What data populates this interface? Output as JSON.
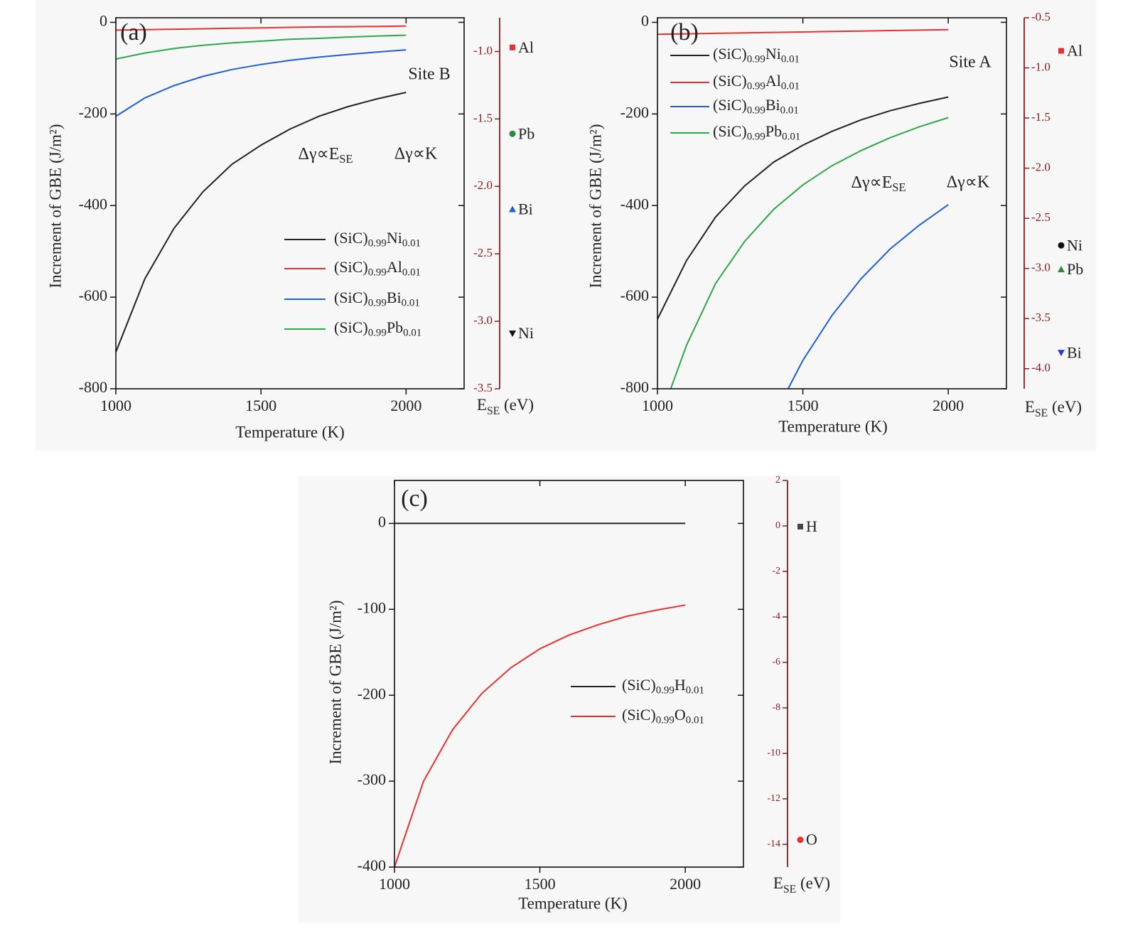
{
  "chart_data": [
    {
      "type": "line",
      "panel_label": "(a)",
      "x_label": "Temperature (K)",
      "y_label": "Increment of GBE (J/m²)",
      "y2_label": "ESE (eV)",
      "x": [
        1000,
        1100,
        1200,
        1300,
        1400,
        1500,
        1600,
        1700,
        1800,
        1900,
        2000
      ],
      "xlim": [
        1000,
        2200
      ],
      "xticks": [
        1000,
        1500,
        2000
      ],
      "ylim": [
        -800,
        10
      ],
      "yticks": [
        -800,
        -600,
        -400,
        -200,
        0
      ],
      "y2lim": [
        -3.5,
        -0.75
      ],
      "y2ticks": [
        -3.5,
        {
          "value": -3,
          "label": "-3.0"
        },
        -2.5,
        {
          "value": -2,
          "label": "-2.0"
        },
        -1.5,
        {
          "value": -1,
          "label": "-1.0"
        }
      ],
      "y2_color": "#8b1a1a",
      "series": [
        {
          "name": "(SiC)0.99Ni0.01",
          "color": "#222222",
          "values": [
            -720,
            -560,
            -450,
            -370,
            -310,
            -268,
            -233,
            -205,
            -184,
            -167,
            -153
          ]
        },
        {
          "name": "(SiC)0.99Al0.01",
          "color": "#e8312f",
          "values": [
            -17,
            -16,
            -15,
            -14,
            -13,
            -12,
            -11,
            -10,
            -9.5,
            -9,
            -8
          ]
        },
        {
          "name": "(SiC)0.99Bi0.01",
          "color": "#1f5fd6",
          "values": [
            -205,
            -165,
            -138,
            -118,
            -103,
            -92,
            -83,
            -76,
            -70,
            -65,
            -60
          ]
        },
        {
          "name": "(SiC)0.99Pb0.01",
          "color": "#2ca84a",
          "values": [
            -80,
            -67,
            -57,
            -50,
            -45,
            -41,
            -37,
            -35,
            -32,
            -30,
            -28
          ]
        }
      ],
      "points": {
        "axis": "y2",
        "labels": [
          "Al",
          "Pb",
          "Bi",
          "Ni"
        ],
        "values": [
          -0.97,
          -1.61,
          -2.17,
          -3.09
        ],
        "colors": [
          "#e8312f",
          "#2a8a3a",
          "#1f5fd6",
          "#111111"
        ],
        "markers": [
          "square",
          "circle",
          "triangle-up",
          "triangle-down"
        ]
      },
      "annotations": [
        "Site B",
        "Δγ∝ESE",
        "Δγ∝K"
      ]
    },
    {
      "type": "line",
      "panel_label": "(b)",
      "x_label": "Temperature (K)",
      "y_label": "Increment of GBE (J/m²)",
      "y2_label": "ESE (eV)",
      "x": [
        1000,
        1100,
        1200,
        1300,
        1400,
        1500,
        1600,
        1700,
        1800,
        1900,
        2000
      ],
      "xlim": [
        1000,
        2200
      ],
      "xticks": [
        1000,
        1500,
        2000
      ],
      "ylim": [
        -800,
        10
      ],
      "yticks": [
        -800,
        -600,
        -400,
        -200,
        0
      ],
      "y2lim": [
        -4.2,
        -0.5
      ],
      "y2ticks": [
        {
          "value": -4,
          "label": "-4.0"
        },
        -3.5,
        {
          "value": -3,
          "label": "-3.0"
        },
        -2.5,
        {
          "value": -2,
          "label": "-2.0"
        },
        -1.5,
        {
          "value": -1,
          "label": "-1.0"
        },
        -0.5
      ],
      "y2_color": "#8b1a1a",
      "series": [
        {
          "name": "(SiC)0.99Ni0.01",
          "color": "#222222",
          "values": [
            -648,
            -520,
            -425,
            -357,
            -305,
            -268,
            -238,
            -213,
            -193,
            -177,
            -163
          ]
        },
        {
          "name": "(SiC)0.99Al0.01",
          "color": "#e8312f",
          "values": [
            -26,
            -25,
            -24,
            -23,
            -22,
            -21,
            -20,
            -19,
            -18,
            -17,
            -16
          ]
        },
        {
          "name": "(SiC)0.99Bi0.01",
          "color": "#1f5fd6",
          "values": [
            null,
            null,
            null,
            null,
            -860,
            -738,
            -640,
            -560,
            -495,
            -443,
            -398
          ]
        },
        {
          "name": "(SiC)0.99Pb0.01",
          "color": "#2ca84a",
          "values": [
            -880,
            -705,
            -570,
            -478,
            -408,
            -355,
            -313,
            -280,
            -252,
            -228,
            -208
          ]
        }
      ],
      "points": {
        "axis": "y2",
        "labels": [
          "Al",
          "Ni",
          "Pb",
          "Bi"
        ],
        "values": [
          -0.83,
          -2.77,
          -3.01,
          -3.84
        ],
        "colors": [
          "#e8312f",
          "#111111",
          "#2a8a3a",
          "#1f3fd6"
        ],
        "markers": [
          "square",
          "circle",
          "triangle-up",
          "triangle-down"
        ]
      },
      "annotations": [
        "Site A",
        "Δγ∝ESE",
        "Δγ∝K"
      ]
    },
    {
      "type": "line",
      "panel_label": "(c)",
      "x_label": "Temperature (K)",
      "y_label": "Increment of GBE (J/m²)",
      "y2_label": "ESE (eV)",
      "x": [
        1000,
        1100,
        1200,
        1300,
        1400,
        1500,
        1600,
        1700,
        1800,
        1900,
        2000
      ],
      "xlim": [
        1000,
        2200
      ],
      "xticks": [
        1000,
        1500,
        2000
      ],
      "ylim": [
        -400,
        50
      ],
      "yticks": [
        -400,
        -300,
        -200,
        -100,
        0
      ],
      "y2lim": [
        -15,
        2
      ],
      "y2ticks": [
        -14,
        -12,
        -10,
        -8,
        -6,
        -4,
        -2,
        0,
        2
      ],
      "y2_color": "#8b1a1a",
      "series": [
        {
          "name": "(SiC)0.99H0.01",
          "color": "#222222",
          "values": [
            0,
            0,
            0,
            0,
            0,
            0,
            0,
            0,
            0,
            0,
            0
          ]
        },
        {
          "name": "(SiC)0.99O0.01",
          "color": "#e8312f",
          "values": [
            -400,
            -300,
            -240,
            -198,
            -168,
            -146,
            -130,
            -118,
            -108,
            -101,
            -95
          ]
        }
      ],
      "points": {
        "axis": "y2",
        "labels": [
          "H",
          "O"
        ],
        "values": [
          -0.03,
          -13.8
        ],
        "colors": [
          "#444455",
          "#e8312f"
        ],
        "markers": [
          "square",
          "circle"
        ]
      },
      "annotations": []
    }
  ]
}
